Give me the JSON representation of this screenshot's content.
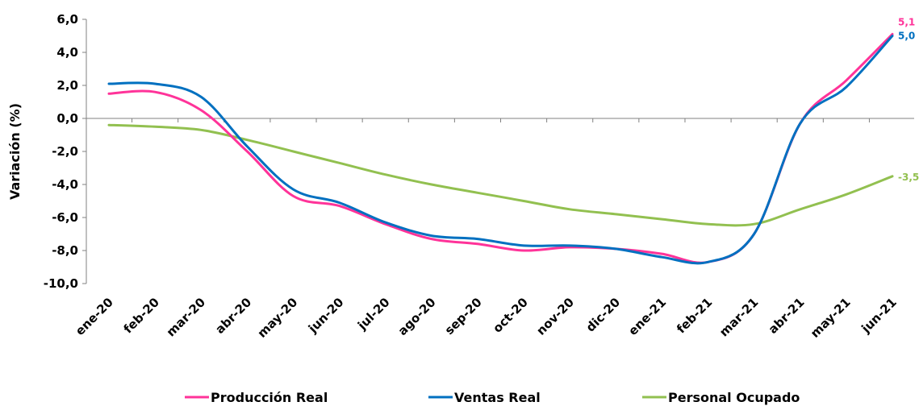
{
  "chart_data": {
    "type": "line",
    "title": "",
    "xlabel": "",
    "ylabel": "Variación (%)",
    "ylim": [
      -10,
      6
    ],
    "y_ticks": [
      "6,0",
      "4,0",
      "2,0",
      "0,0",
      "-2,0",
      "-4,0",
      "-6,0",
      "-8,0",
      "-10,0"
    ],
    "categories": [
      "ene-20",
      "feb-20",
      "mar-20",
      "abr-20",
      "may-20",
      "jun-20",
      "jul-20",
      "ago-20",
      "sep-20",
      "oct-20",
      "nov-20",
      "dic-20",
      "ene-21",
      "feb-21",
      "mar-21",
      "abr-21",
      "may-21",
      "jun-21"
    ],
    "grid": false,
    "legend_position": "bottom",
    "series": [
      {
        "name": "Producción Real",
        "color": "#ff3399",
        "values": [
          1.5,
          1.6,
          0.5,
          -2.0,
          -4.7,
          -5.3,
          -6.4,
          -7.3,
          -7.6,
          -8.0,
          -7.8,
          -7.9,
          -8.2,
          -8.7,
          -7.0,
          -0.3,
          2.3,
          5.1
        ],
        "end_label": "5,1"
      },
      {
        "name": "Ventas Real",
        "color": "#0070c0",
        "values": [
          2.1,
          2.1,
          1.3,
          -1.7,
          -4.3,
          -5.1,
          -6.3,
          -7.1,
          -7.3,
          -7.7,
          -7.7,
          -7.9,
          -8.4,
          -8.7,
          -7.0,
          -0.3,
          1.9,
          5.0
        ],
        "end_label": "5,0"
      },
      {
        "name": "Personal Ocupado",
        "color": "#92c050",
        "values": [
          -0.4,
          -0.5,
          -0.7,
          -1.3,
          -2.0,
          -2.7,
          -3.4,
          -4.0,
          -4.5,
          -5.0,
          -5.5,
          -5.8,
          -6.1,
          -6.4,
          -6.4,
          -5.5,
          -4.6,
          -3.5
        ],
        "end_label": "-3,5"
      }
    ]
  }
}
